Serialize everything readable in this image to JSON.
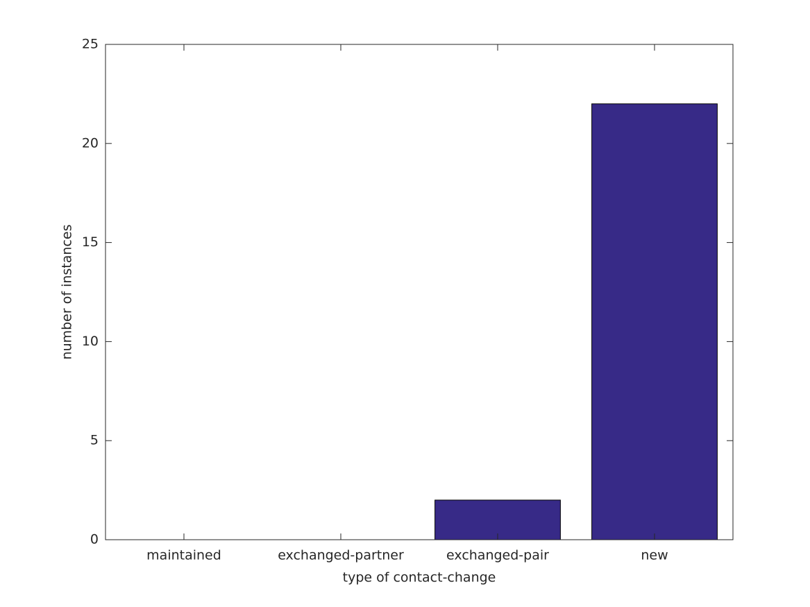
{
  "chart_data": {
    "type": "bar",
    "xlabel": "type of contact-change",
    "ylabel": "number of instances",
    "categories": [
      "maintained",
      "exchanged-partner",
      "exchanged-pair",
      "new"
    ],
    "values": [
      0,
      0,
      2,
      22
    ],
    "color": "#372a87",
    "ylim": [
      0,
      25
    ],
    "yticks": [
      0,
      5,
      10,
      15,
      20,
      25
    ],
    "grid": false
  }
}
